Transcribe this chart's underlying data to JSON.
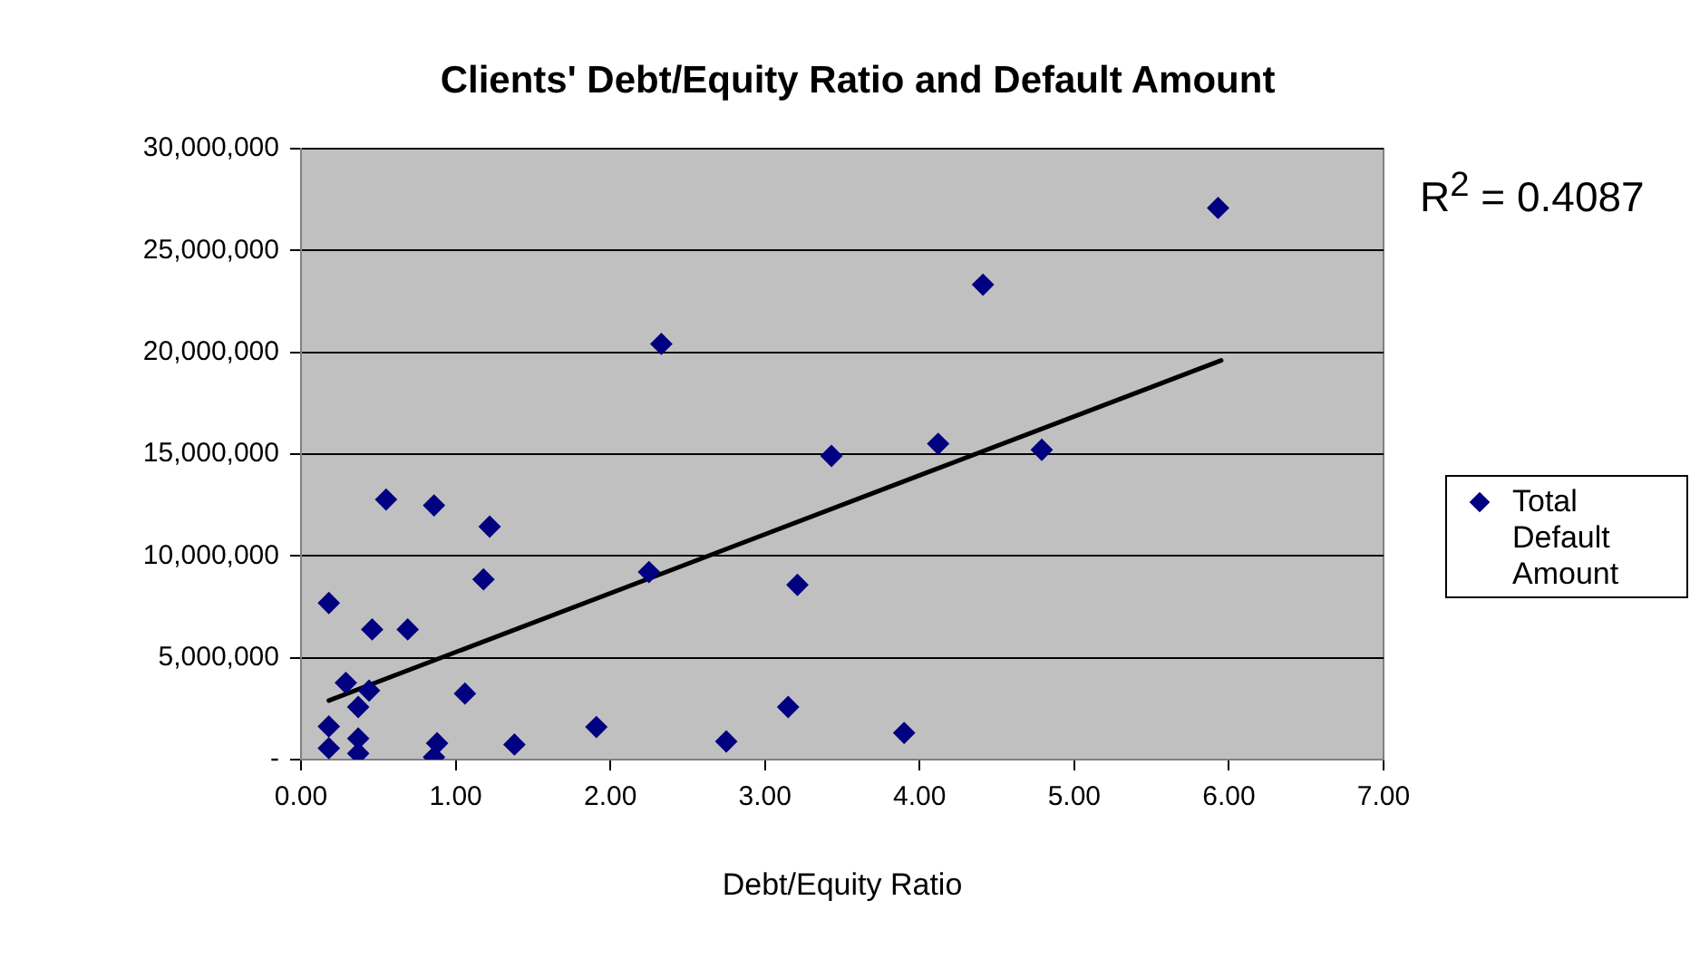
{
  "chart_data": {
    "type": "scatter",
    "title": "Clients' Debt/Equity Ratio and Default Amount",
    "xlabel": "Debt/Equity Ratio",
    "annotations": [
      "R$^{2}$ = 0.4087"
    ],
    "xlim": [
      0,
      7
    ],
    "xticks": [
      {
        "value": 0,
        "label": "0.00"
      },
      {
        "value": 1,
        "label": "1.00"
      },
      {
        "value": 2,
        "label": "2.00"
      },
      {
        "value": 3,
        "label": "3.00"
      },
      {
        "value": 4,
        "label": "4.00"
      },
      {
        "value": 5,
        "label": "5.00"
      },
      {
        "value": 6,
        "label": "6.00"
      },
      {
        "value": 7,
        "label": "7.00"
      }
    ],
    "ylim": [
      0,
      30000000
    ],
    "yticks": [
      {
        "value": 0,
        "label": "-"
      },
      {
        "value": 5000000,
        "label": "5,000,000"
      },
      {
        "value": 10000000,
        "label": "10,000,000"
      },
      {
        "value": 15000000,
        "label": "15,000,000"
      },
      {
        "value": 20000000,
        "label": "20,000,000"
      },
      {
        "value": 25000000,
        "label": "25,000,000"
      },
      {
        "value": 30000000,
        "label": "30,000,000"
      }
    ],
    "grid": "y",
    "legend": "right",
    "marker": "diamond",
    "series": [
      {
        "name": "Total Default Amount",
        "color": "#000080",
        "x": [
          0.18,
          0.18,
          0.18,
          0.29,
          0.37,
          0.44,
          0.37,
          0.37,
          0.46,
          0.55,
          0.69,
          0.86,
          0.88,
          0.86,
          1.06,
          1.18,
          1.22,
          1.38,
          1.91,
          2.25,
          2.33,
          2.75,
          3.15,
          3.21,
          3.43,
          3.9,
          4.12,
          4.41,
          4.79,
          5.93
        ],
        "values": [
          560000,
          1630000,
          7690000,
          3770000,
          2580000,
          3390000,
          1040000,
          300000,
          6390000,
          12770000,
          6390000,
          12480000,
          800000,
          120000,
          3240000,
          8850000,
          11440000,
          740000,
          1600000,
          9210000,
          20410000,
          890000,
          2580000,
          8580000,
          14910000,
          1310000,
          15510000,
          23320000,
          15210000,
          27090000
        ]
      },
      {
        "type": "line",
        "color": "#000000",
        "marker": "none",
        "x": [
          0.18,
          5.95
        ],
        "values": [
          2900000,
          19600000
        ]
      }
    ]
  }
}
